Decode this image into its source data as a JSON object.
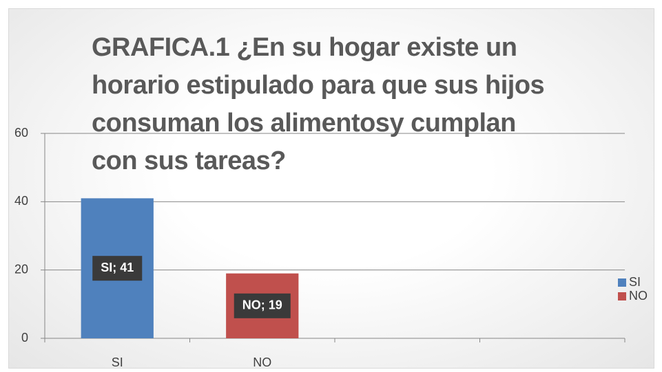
{
  "chart_data": {
    "type": "bar",
    "title": "GRAFICA.1 ¿En su hogar existe un\nhorario estipulado para que sus hijos\nconsuman los alimentosy cumplan\ncon sus tareas?",
    "categories": [
      "SI",
      "NO",
      null,
      null
    ],
    "values": [
      41,
      19,
      null,
      null
    ],
    "value_labels": [
      "SI; 41",
      "NO; 19",
      null,
      null
    ],
    "colors": [
      "#4f81bd",
      "#c0504d"
    ],
    "ylim": [
      0,
      60
    ],
    "yticks": [
      0,
      20,
      40,
      60
    ],
    "grid": true,
    "legend": "right"
  }
}
